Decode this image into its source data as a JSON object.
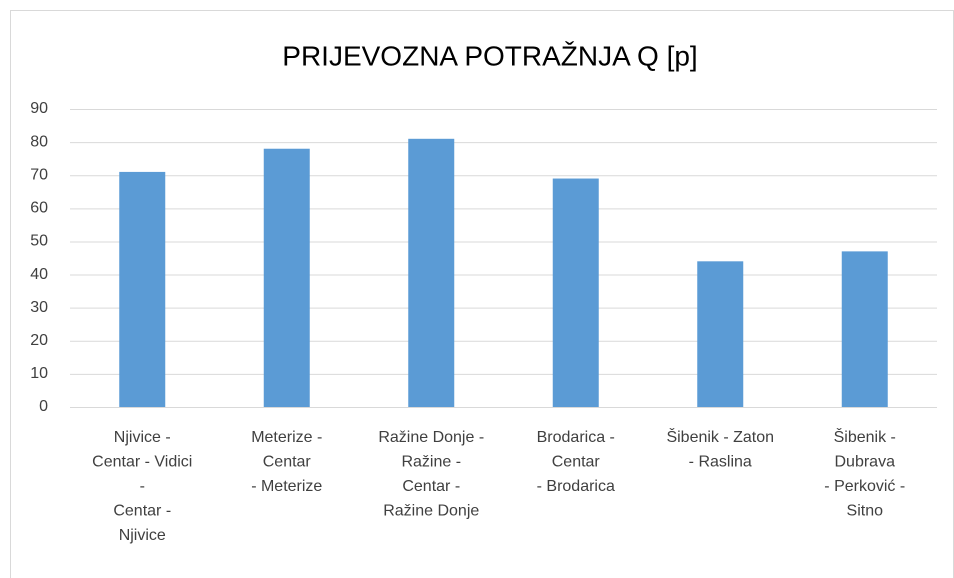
{
  "chart_data": {
    "type": "bar",
    "title": "PRIJEVOZNA POTRAŽNJA Q [p]",
    "categories": [
      "Njivice -\nCentar - Vidici\n-\nCentar -\nNjivice",
      "Meterize -\nCentar\n- Meterize",
      "Ražine Donje -\nRažine -\nCentar -\nRažine Donje",
      "Brodarica -\nCentar\n- Brodarica",
      "Šibenik - Zaton\n- Raslina",
      "Šibenik -\nDubrava\n- Perković -\nSitno"
    ],
    "values": [
      71,
      78,
      81,
      69,
      44,
      47
    ],
    "color": "#5b9bd5",
    "ylim": [
      0,
      90
    ],
    "yticks": [
      0,
      10,
      20,
      30,
      40,
      50,
      60,
      70,
      80,
      90
    ],
    "grid": true
  }
}
